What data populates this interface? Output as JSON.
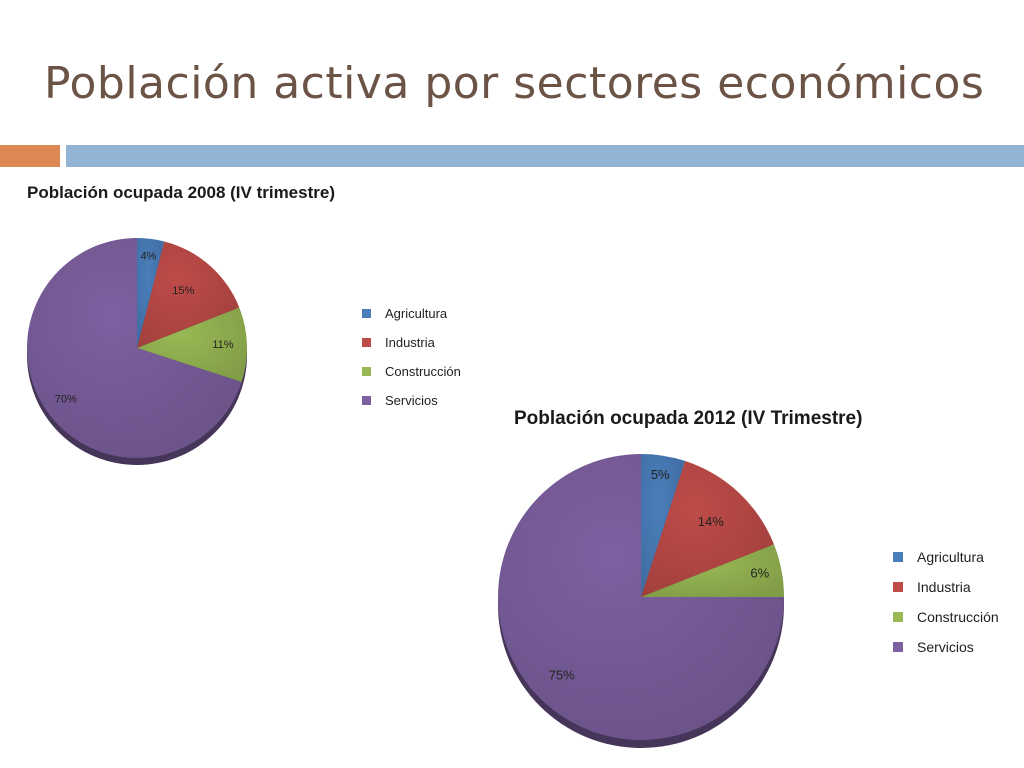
{
  "slide": {
    "title": "Población activa por sectores económicos"
  },
  "colors": {
    "title": "#6b5346",
    "accent_orange": "#dd8752",
    "accent_blue": "#92b4d5",
    "agricultura": "#4a7ebb",
    "industria": "#be4b48",
    "construccion": "#98b954",
    "servicios": "#7d60a0"
  },
  "chart_data": [
    {
      "type": "pie",
      "title": "Población ocupada 2008 (IV trimestre)",
      "categories": [
        "Agricultura",
        "Industria",
        "Construcción",
        "Servicios"
      ],
      "values": [
        4,
        15,
        11,
        70
      ],
      "labels": [
        "4%",
        "15%",
        "11%",
        "70%"
      ],
      "legend_position": "right",
      "grid": false
    },
    {
      "type": "pie",
      "title": "Población ocupada 2012 (IV Trimestre)",
      "categories": [
        "Agricultura",
        "Industria",
        "Construcción",
        "Servicios"
      ],
      "values": [
        5,
        14,
        6,
        75
      ],
      "labels": [
        "5%",
        "14%",
        "6%",
        "75%"
      ],
      "legend_position": "right",
      "grid": false
    }
  ]
}
